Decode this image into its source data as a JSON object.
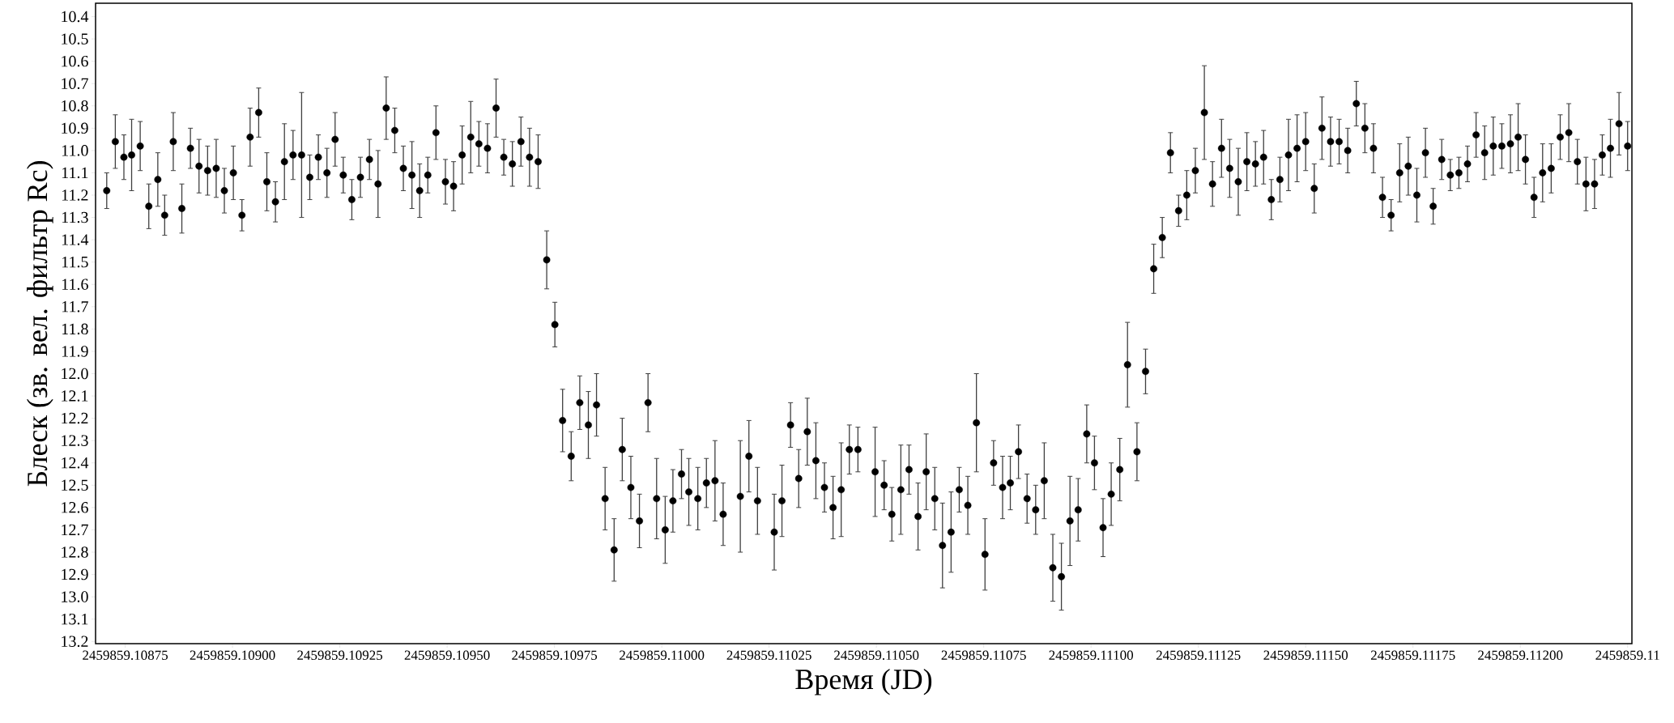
{
  "chart_data": {
    "type": "scatter",
    "xlabel": "Время (JD)",
    "ylabel": "Блеск (зв. вел. фильтр Rc)",
    "color": "#000000",
    "xlim": [
      2459859.108681,
      2459859.11226
    ],
    "ylim": [
      13.21,
      10.34
    ],
    "xticks": [
      {
        "value": 2459859.10875,
        "label": "2459859.10875"
      },
      {
        "value": 2459859.109,
        "label": "2459859.10900"
      },
      {
        "value": 2459859.10925,
        "label": "2459859.10925"
      },
      {
        "value": 2459859.1095,
        "label": "2459859.10950"
      },
      {
        "value": 2459859.10975,
        "label": "2459859.10975"
      },
      {
        "value": 2459859.11,
        "label": "2459859.11000"
      },
      {
        "value": 2459859.11025,
        "label": "2459859.11025"
      },
      {
        "value": 2459859.1105,
        "label": "2459859.11050"
      },
      {
        "value": 2459859.11075,
        "label": "2459859.11075"
      },
      {
        "value": 2459859.111,
        "label": "2459859.11100"
      },
      {
        "value": 2459859.11125,
        "label": "2459859.11125"
      },
      {
        "value": 2459859.1115,
        "label": "2459859.11150"
      },
      {
        "value": 2459859.11175,
        "label": "2459859.11175"
      },
      {
        "value": 2459859.112,
        "label": "2459859.11200"
      },
      {
        "value": 2459859.11225,
        "label": "2459859.11"
      }
    ],
    "yticks": [
      10.4,
      10.5,
      10.6,
      10.7,
      10.8,
      10.9,
      {
        "value": 11.0,
        "label": "11.0"
      },
      11.1,
      11.2,
      11.3,
      11.4,
      11.5,
      11.6,
      11.7,
      11.8,
      11.9,
      {
        "value": 12.0,
        "label": "12.0"
      },
      12.1,
      12.2,
      12.3,
      12.4,
      12.5,
      12.6,
      12.7,
      12.8,
      12.9,
      {
        "value": 13.0,
        "label": "13.0"
      },
      13.1,
      13.2
    ],
    "x": [
      2459859.108707,
      2459859.108727,
      2459859.108747,
      2459859.108765,
      2459859.108785,
      2459859.108805,
      2459859.108826,
      2459859.108842,
      2459859.108862,
      2459859.108882,
      2459859.108902,
      2459859.108922,
      2459859.108942,
      2459859.108962,
      2459859.108981,
      2459859.109002,
      2459859.109022,
      2459859.109041,
      2459859.109061,
      2459859.10908,
      2459859.1091,
      2459859.109121,
      2459859.109141,
      2459859.109161,
      2459859.10918,
      2459859.1092,
      2459859.10922,
      2459859.109239,
      2459859.109258,
      2459859.109278,
      2459859.109298,
      2459859.109319,
      2459859.109339,
      2459859.109358,
      2459859.109378,
      2459859.109398,
      2459859.109418,
      2459859.109436,
      2459859.109455,
      2459859.109474,
      2459859.109496,
      2459859.109515,
      2459859.109535,
      2459859.109555,
      2459859.109574,
      2459859.109594,
      2459859.109614,
      2459859.109632,
      2459859.109652,
      2459859.109672,
      2459859.109692,
      2459859.109712,
      2459859.109732,
      2459859.109751,
      2459859.109769,
      2459859.109789,
      2459859.109809,
      2459859.109829,
      2459859.109848,
      2459859.109868,
      2459859.109889,
      2459859.109908,
      2459859.109928,
      2459859.109948,
      2459859.109968,
      2459859.109988,
      2459859.110008,
      2459859.110026,
      2459859.110046,
      2459859.110063,
      2459859.110084,
      2459859.110104,
      2459859.110124,
      2459859.110143,
      2459859.110183,
      2459859.110203,
      2459859.110223,
      2459859.110262,
      2459859.11028,
      2459859.1103,
      2459859.110319,
      2459859.110339,
      2459859.110359,
      2459859.110379,
      2459859.110399,
      2459859.110418,
      2459859.110437,
      2459859.110457,
      2459859.110497,
      2459859.110518,
      2459859.110536,
      2459859.110557,
      2459859.110576,
      2459859.110597,
      2459859.110616,
      2459859.110636,
      2459859.110654,
      2459859.110674,
      2459859.110693,
      2459859.110713,
      2459859.110733,
      2459859.110753,
      2459859.110773,
      2459859.110794,
      2459859.110812,
      2459859.110831,
      2459859.110851,
      2459859.110871,
      2459859.110891,
      2459859.110911,
      2459859.110931,
      2459859.110951,
      2459859.11097,
      2459859.11099,
      2459859.111008,
      2459859.111028,
      2459859.111047,
      2459859.111067,
      2459859.111085,
      2459859.111107,
      2459859.111127,
      2459859.111146,
      2459859.111166,
      2459859.111185,
      2459859.111204,
      2459859.111223,
      2459859.111243,
      2459859.111264,
      2459859.111283,
      2459859.111304,
      2459859.111323,
      2459859.111343,
      2459859.111363,
      2459859.111383,
      2459859.111402,
      2459859.11142,
      2459859.11144,
      2459859.11146,
      2459859.11148,
      2459859.1115,
      2459859.11152,
      2459859.111538,
      2459859.111558,
      2459859.111578,
      2459859.111598,
      2459859.111618,
      2459859.111638,
      2459859.111658,
      2459859.111679,
      2459859.111699,
      2459859.111719,
      2459859.111739,
      2459859.111759,
      2459859.111779,
      2459859.111797,
      2459859.111817,
      2459859.111837,
      2459859.111857,
      2459859.111877,
      2459859.111897,
      2459859.111917,
      2459859.111937,
      2459859.111957,
      2459859.111977,
      2459859.111995,
      2459859.112012,
      2459859.112032,
      2459859.112052,
      2459859.112072,
      2459859.112093,
      2459859.112113,
      2459859.112133,
      2459859.112153,
      2459859.112173,
      2459859.112191,
      2459859.11221,
      2459859.11223,
      2459859.11225
    ],
    "values": [
      11.18,
      10.96,
      11.03,
      11.02,
      10.98,
      11.25,
      11.13,
      11.29,
      10.96,
      11.26,
      10.99,
      11.07,
      11.09,
      11.08,
      11.18,
      11.1,
      11.29,
      10.94,
      10.83,
      11.14,
      11.23,
      11.05,
      11.02,
      11.02,
      11.12,
      11.03,
      11.1,
      10.95,
      11.11,
      11.22,
      11.12,
      11.04,
      11.15,
      10.81,
      10.91,
      11.08,
      11.11,
      11.18,
      11.11,
      10.92,
      11.14,
      11.16,
      11.02,
      10.94,
      10.97,
      10.99,
      10.81,
      11.03,
      11.06,
      10.96,
      11.03,
      11.05,
      11.49,
      11.78,
      12.21,
      12.37,
      12.13,
      12.23,
      12.14,
      12.56,
      12.79,
      12.34,
      12.51,
      12.66,
      12.13,
      12.56,
      12.7,
      12.57,
      12.45,
      12.53,
      12.56,
      12.49,
      12.48,
      12.63,
      12.55,
      12.37,
      12.57,
      12.71,
      12.57,
      12.23,
      12.47,
      12.26,
      12.39,
      12.51,
      12.6,
      12.52,
      12.34,
      12.34,
      12.44,
      12.5,
      12.63,
      12.52,
      12.43,
      12.64,
      12.44,
      12.56,
      12.77,
      12.71,
      12.52,
      12.59,
      12.22,
      12.81,
      12.4,
      12.51,
      12.49,
      12.35,
      12.56,
      12.61,
      12.48,
      12.87,
      12.91,
      12.66,
      12.61,
      12.27,
      12.4,
      12.69,
      12.54,
      12.43,
      11.96,
      12.35,
      11.99,
      11.53,
      11.39,
      11.01,
      11.27,
      11.2,
      11.09,
      10.83,
      11.15,
      10.99,
      11.08,
      11.14,
      11.05,
      11.06,
      11.03,
      11.22,
      11.13,
      11.02,
      10.99,
      10.96,
      11.17,
      10.9,
      10.96,
      10.96,
      11.0,
      10.79,
      10.9,
      10.99,
      11.21,
      11.29,
      11.1,
      11.07,
      11.2,
      11.01,
      11.25,
      11.04,
      11.11,
      11.1,
      11.06,
      10.93,
      11.01,
      10.98,
      10.98,
      10.97,
      10.94,
      11.04,
      11.21,
      11.1,
      11.08,
      10.94,
      10.92,
      11.05,
      11.15,
      11.15,
      11.02,
      10.99,
      10.88,
      10.98
    ],
    "errors": [
      0.08,
      0.12,
      0.1,
      0.16,
      0.11,
      0.1,
      0.12,
      0.09,
      0.13,
      0.11,
      0.09,
      0.12,
      0.11,
      0.13,
      0.1,
      0.12,
      0.07,
      0.13,
      0.11,
      0.13,
      0.09,
      0.17,
      0.11,
      0.28,
      0.1,
      0.1,
      0.11,
      0.12,
      0.08,
      0.09,
      0.09,
      0.09,
      0.15,
      0.14,
      0.1,
      0.1,
      0.15,
      0.12,
      0.08,
      0.12,
      0.1,
      0.11,
      0.13,
      0.16,
      0.1,
      0.11,
      0.13,
      0.08,
      0.1,
      0.11,
      0.13,
      0.12,
      0.13,
      0.1,
      0.14,
      0.11,
      0.12,
      0.15,
      0.14,
      0.14,
      0.14,
      0.14,
      0.14,
      0.12,
      0.13,
      0.18,
      0.15,
      0.14,
      0.11,
      0.15,
      0.14,
      0.11,
      0.18,
      0.14,
      0.25,
      0.16,
      0.15,
      0.17,
      0.16,
      0.1,
      0.13,
      0.15,
      0.17,
      0.11,
      0.14,
      0.21,
      0.11,
      0.1,
      0.2,
      0.11,
      0.12,
      0.2,
      0.11,
      0.15,
      0.17,
      0.14,
      0.19,
      0.18,
      0.1,
      0.13,
      0.22,
      0.16,
      0.1,
      0.14,
      0.12,
      0.12,
      0.11,
      0.11,
      0.17,
      0.15,
      0.15,
      0.2,
      0.14,
      0.13,
      0.12,
      0.13,
      0.14,
      0.14,
      0.19,
      0.13,
      0.1,
      0.11,
      0.09,
      0.09,
      0.07,
      0.11,
      0.1,
      0.21,
      0.1,
      0.13,
      0.13,
      0.15,
      0.13,
      0.1,
      0.12,
      0.09,
      0.1,
      0.16,
      0.15,
      0.13,
      0.11,
      0.14,
      0.11,
      0.1,
      0.1,
      0.1,
      0.11,
      0.11,
      0.09,
      0.07,
      0.13,
      0.13,
      0.12,
      0.11,
      0.08,
      0.09,
      0.07,
      0.07,
      0.08,
      0.1,
      0.12,
      0.13,
      0.1,
      0.13,
      0.15,
      0.11,
      0.09,
      0.13,
      0.11,
      0.1,
      0.13,
      0.1,
      0.12,
      0.11,
      0.09,
      0.13,
      0.14,
      0.11
    ]
  }
}
